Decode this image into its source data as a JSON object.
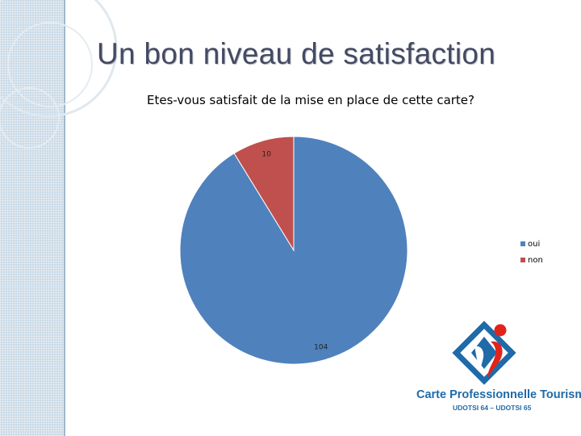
{
  "slide": {
    "title": "Un bon niveau de satisfaction"
  },
  "chart_data": {
    "type": "pie",
    "title": "Etes-vous satisfait de la mise en place de cette carte?",
    "categories": [
      "oui",
      "non"
    ],
    "values": [
      104,
      10
    ],
    "colors": [
      "#4f81bd",
      "#c0504d"
    ],
    "data_labels": [
      "104",
      "10"
    ],
    "legend": "right"
  },
  "logo": {
    "title": "Carte Professionnelle Tourisme",
    "subtitle": "UDOTSI 64 – UDOTSI 65",
    "colors": {
      "blue": "#1f6aa8",
      "red": "#e2231a"
    }
  }
}
